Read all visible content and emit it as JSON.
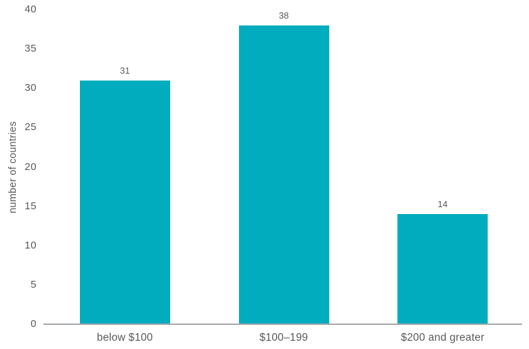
{
  "chart_data": {
    "type": "bar",
    "title": "",
    "categories": [
      "below $100",
      "$100–199",
      "$200 and greater"
    ],
    "values": [
      31,
      38,
      14
    ],
    "xlabel": "",
    "ylabel": "number of countries",
    "ylim": [
      0,
      40
    ],
    "yticks": [
      0,
      5,
      10,
      15,
      20,
      25,
      30,
      35,
      40
    ],
    "grid": false,
    "legend_position": "none",
    "colors": {
      "bar": "#00acbd",
      "axis_line": "#a6a8ab",
      "text": "#58595b"
    }
  }
}
